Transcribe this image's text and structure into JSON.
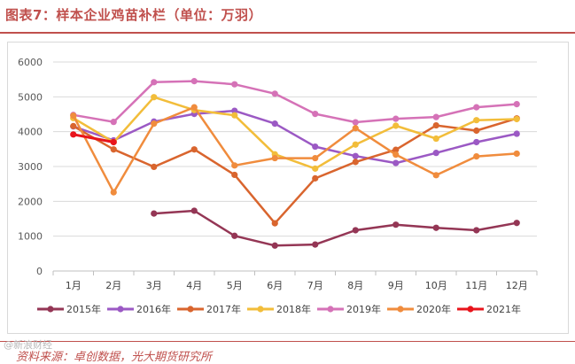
{
  "figure": {
    "title": "图表7：样本企业鸡苗补栏（单位：万羽）",
    "source": "资料来源：卓创数据，光大期货研究所",
    "watermark": "@新浪财经"
  },
  "chart_data": {
    "type": "line",
    "title": "图表7：样本企业鸡苗补栏（单位：万羽）",
    "xlabel": "",
    "ylabel": "",
    "ylim": [
      0,
      6000
    ],
    "yticks": [
      "0",
      "1000",
      "2000",
      "3000",
      "4000",
      "5000",
      "6000"
    ],
    "ytick_values": [
      0,
      1000,
      2000,
      3000,
      4000,
      5000,
      6000
    ],
    "categories": [
      "1月",
      "2月",
      "3月",
      "4月",
      "5月",
      "6月",
      "7月",
      "8月",
      "9月",
      "10月",
      "11月",
      "12月"
    ],
    "grid": true,
    "legend_position": "bottom",
    "series": [
      {
        "name": "2015年",
        "color": "#943655",
        "values": [
          null,
          null,
          1650,
          1730,
          1010,
          730,
          760,
          1170,
          1330,
          1240,
          1170,
          1380
        ]
      },
      {
        "name": "2016年",
        "color": "#9b59c4",
        "values": [
          4150,
          3750,
          4290,
          4510,
          4600,
          4230,
          3570,
          3300,
          3100,
          3390,
          3700,
          3940
        ]
      },
      {
        "name": "2017年",
        "color": "#d9652e",
        "values": [
          4160,
          3490,
          2990,
          3490,
          2760,
          1370,
          2660,
          3130,
          3480,
          4180,
          4030,
          4380
        ]
      },
      {
        "name": "2018年",
        "color": "#f2bd3a",
        "values": [
          4390,
          3700,
          4990,
          4620,
          4470,
          3350,
          2940,
          3630,
          4170,
          3800,
          4330,
          4360
        ]
      },
      {
        "name": "2019年",
        "color": "#d572b7",
        "values": [
          4480,
          4280,
          5420,
          5450,
          5360,
          5090,
          4510,
          4270,
          4370,
          4420,
          4700,
          4790
        ]
      },
      {
        "name": "2020年",
        "color": "#f08c3d",
        "values": [
          4460,
          2260,
          4230,
          4700,
          3030,
          3240,
          3240,
          4100,
          3340,
          2750,
          3290,
          3370
        ]
      },
      {
        "name": "2021年",
        "color": "#e8141c",
        "values": [
          3920,
          3700,
          null,
          null,
          null,
          null,
          null,
          null,
          null,
          null,
          null,
          null
        ]
      }
    ]
  }
}
